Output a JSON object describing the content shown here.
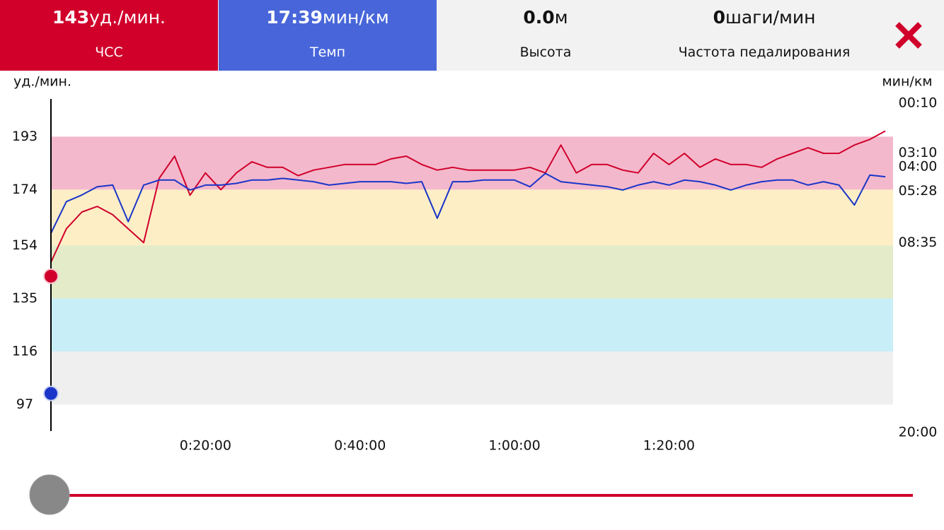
{
  "metrics": [
    {
      "value": 143,
      "unit": "уд./мин.",
      "label": "ЧСС",
      "color": "#d0002b"
    },
    {
      "value": {
        "value": 17.65,
        "label": "17:39"
      },
      "unit": "мин/км",
      "label": "Темп",
      "color": "#4866d9"
    },
    {
      "value": {
        "value": 0,
        "label": "0.0"
      },
      "unit": "м",
      "label": "Высота"
    },
    {
      "value": 0,
      "unit": "шаги/мин",
      "label": "Частота педалирования"
    }
  ],
  "chart_data": {
    "type": "line",
    "ylabel": "уд./мин.",
    "y2label": "мин/км",
    "x": [
      0,
      2,
      4,
      6,
      8,
      10,
      12,
      14,
      16,
      18,
      20,
      22,
      24,
      26,
      28,
      30,
      32,
      34,
      36,
      38,
      40,
      42,
      44,
      46,
      48,
      50,
      52,
      54,
      56,
      58,
      60,
      62,
      64,
      66,
      68,
      70,
      72,
      74,
      76,
      78,
      80,
      82,
      84,
      86,
      88,
      90,
      92,
      94,
      96,
      98,
      100,
      102,
      104,
      106,
      108
    ],
    "xlim": [
      0,
      109
    ],
    "xticks": [
      {
        "value": 20,
        "label": "0:20:00"
      },
      {
        "value": 40,
        "label": "0:40:00"
      },
      {
        "value": 60,
        "label": "1:00:00"
      },
      {
        "value": 80,
        "label": "1:20:00"
      }
    ],
    "ylim": [
      87,
      206
    ],
    "yticks": [
      193,
      174,
      154,
      135,
      116,
      97
    ],
    "y2lim": [
      20,
      0
    ],
    "y2ticks": [
      {
        "value": 0.17,
        "label": "00:10"
      },
      {
        "value": 3.17,
        "label": "03:10"
      },
      {
        "value": 4,
        "label": "04:00"
      },
      {
        "value": 5.47,
        "label": "05:28"
      },
      {
        "value": 8.58,
        "label": "08:35"
      },
      {
        "value": 20,
        "label": "20:00"
      }
    ],
    "zone_colors": [
      "#f4b8cc",
      "#fdeec6",
      "#e3ebc9",
      "#c8eef8",
      "#efefef"
    ],
    "series": [
      {
        "name": "ЧСС",
        "color": "#d0002b",
        "values": [
          148,
          160,
          166,
          168,
          165,
          160,
          155,
          178,
          186,
          172,
          180,
          174,
          180,
          184,
          182,
          182,
          179,
          181,
          182,
          183,
          183,
          183,
          185,
          186,
          183,
          181,
          182,
          181,
          181,
          181,
          181,
          182,
          180,
          190,
          180,
          183,
          183,
          181,
          180,
          187,
          183,
          187,
          182,
          185,
          183,
          183,
          182,
          185,
          187,
          189,
          187,
          187,
          190,
          192,
          195
        ]
      },
      {
        "name": "Темп",
        "color": "#1a35c8",
        "axis": "y2",
        "values": [
          8.0,
          6.1,
          5.7,
          5.2,
          5.1,
          7.3,
          5.1,
          4.8,
          4.8,
          5.4,
          5.1,
          5.1,
          5.0,
          4.8,
          4.8,
          4.7,
          4.8,
          4.9,
          5.1,
          5.0,
          4.9,
          4.9,
          4.9,
          5.0,
          4.9,
          7.1,
          4.9,
          4.9,
          4.8,
          4.8,
          4.8,
          5.2,
          4.4,
          4.9,
          5.0,
          5.1,
          5.2,
          5.4,
          5.1,
          4.9,
          5.1,
          4.8,
          4.9,
          5.1,
          5.4,
          5.1,
          4.9,
          4.8,
          4.8,
          5.1,
          4.9,
          5.1,
          6.3,
          4.5,
          4.6
        ]
      }
    ]
  }
}
